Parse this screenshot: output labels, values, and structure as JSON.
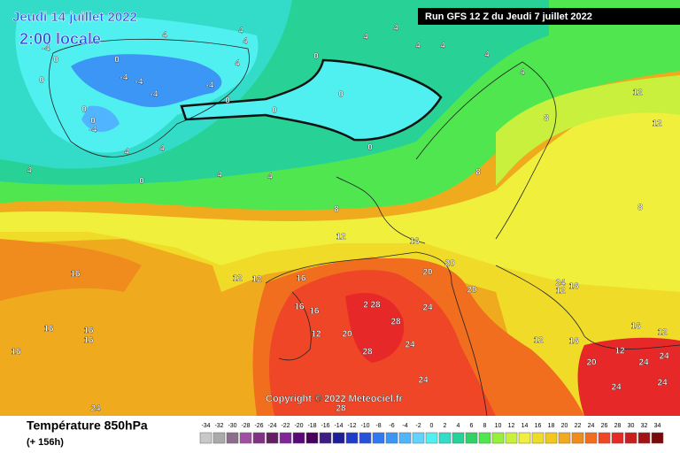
{
  "header": {
    "date": "Jeudi 14 juillet 2022",
    "time": "2:00 locale",
    "run": "Run GFS 12 Z du Jeudi 7 juillet 2022"
  },
  "copyright": "Copyright © 2022 Meteociel.fr",
  "legend": {
    "title": "Température 850hPa",
    "lead_time": "(+ 156h)",
    "values": [
      -34,
      -32,
      -30,
      -28,
      -26,
      -24,
      -22,
      -20,
      -18,
      -16,
      -14,
      -12,
      -10,
      -8,
      -6,
      -4,
      -2,
      0,
      2,
      4,
      6,
      8,
      10,
      12,
      14,
      16,
      18,
      20,
      22,
      24,
      26,
      28,
      30,
      32,
      34
    ],
    "colors": [
      "#c8c8c8",
      "#aaaaaa",
      "#8c6e8c",
      "#a050a0",
      "#823282",
      "#641e64",
      "#7d2896",
      "#5a0a78",
      "#46005a",
      "#3c1e82",
      "#1e1e96",
      "#1e3cc8",
      "#2850dc",
      "#3278f0",
      "#3c96f5",
      "#50b4ff",
      "#64d2ff",
      "#50f0f0",
      "#32dcc8",
      "#28d296",
      "#32d264",
      "#50e650",
      "#96f03c",
      "#c8f03c",
      "#f0f03c",
      "#f0dc28",
      "#f0c81e",
      "#f0aa1e",
      "#f08c1e",
      "#f06e1e",
      "#f04628",
      "#e62828",
      "#c81e1e",
      "#a01414",
      "#780a0a"
    ]
  },
  "contour_labels": [
    "4",
    "4",
    "4",
    "-4",
    "0",
    "0",
    "-4",
    "-4",
    "-4",
    "-4",
    "4",
    "0",
    "0",
    "0",
    "-4",
    "0",
    "0",
    "0",
    "0",
    "4",
    "4",
    "4",
    "4",
    "4",
    "4",
    "12",
    "8",
    "12",
    "4",
    "0",
    "4",
    "4",
    "4",
    "4",
    "0",
    "8",
    "8",
    "12",
    "16",
    "8",
    "20",
    "20",
    "20",
    "16",
    "12",
    "12",
    "16",
    "16",
    "16",
    "12",
    "20",
    "2",
    "28",
    "28",
    "24",
    "24",
    "28",
    "24",
    "12",
    "16",
    "12",
    "16",
    "16",
    "12",
    "12",
    "20",
    "24",
    "24",
    "24",
    "24",
    "24",
    "16",
    "16",
    "16",
    "16",
    "24",
    "28"
  ]
}
